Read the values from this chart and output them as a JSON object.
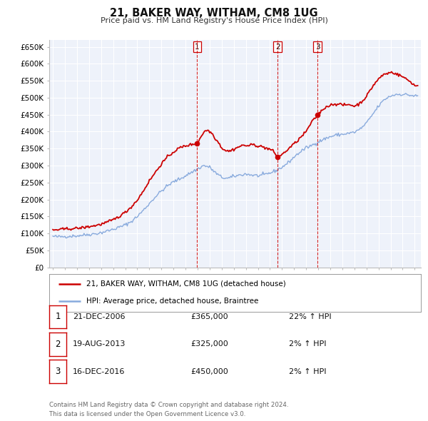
{
  "title": "21, BAKER WAY, WITHAM, CM8 1UG",
  "subtitle": "Price paid vs. HM Land Registry's House Price Index (HPI)",
  "ylabel_ticks": [
    "£0",
    "£50K",
    "£100K",
    "£150K",
    "£200K",
    "£250K",
    "£300K",
    "£350K",
    "£400K",
    "£450K",
    "£500K",
    "£550K",
    "£600K",
    "£650K"
  ],
  "ytick_values": [
    0,
    50000,
    100000,
    150000,
    200000,
    250000,
    300000,
    350000,
    400000,
    450000,
    500000,
    550000,
    600000,
    650000
  ],
  "xmin": 1994.7,
  "xmax": 2025.5,
  "ymin": 0,
  "ymax": 670000,
  "sale_color": "#cc0000",
  "hpi_color": "#88aadd",
  "background_color": "#eef2fa",
  "grid_color": "#ffffff",
  "sale_dates": [
    2006.97,
    2013.63,
    2016.96
  ],
  "sale_prices": [
    365000,
    325000,
    450000
  ],
  "sale_labels": [
    "1",
    "2",
    "3"
  ],
  "vline_color": "#cc0000",
  "legend_label_sale": "21, BAKER WAY, WITHAM, CM8 1UG (detached house)",
  "legend_label_hpi": "HPI: Average price, detached house, Braintree",
  "table_rows": [
    {
      "num": "1",
      "date": "21-DEC-2006",
      "price": "£365,000",
      "change": "22% ↑ HPI"
    },
    {
      "num": "2",
      "date": "19-AUG-2013",
      "price": "£325,000",
      "change": "2% ↑ HPI"
    },
    {
      "num": "3",
      "date": "16-DEC-2016",
      "price": "£450,000",
      "change": "2% ↑ HPI"
    }
  ],
  "footer": "Contains HM Land Registry data © Crown copyright and database right 2024.\nThis data is licensed under the Open Government Licence v3.0."
}
